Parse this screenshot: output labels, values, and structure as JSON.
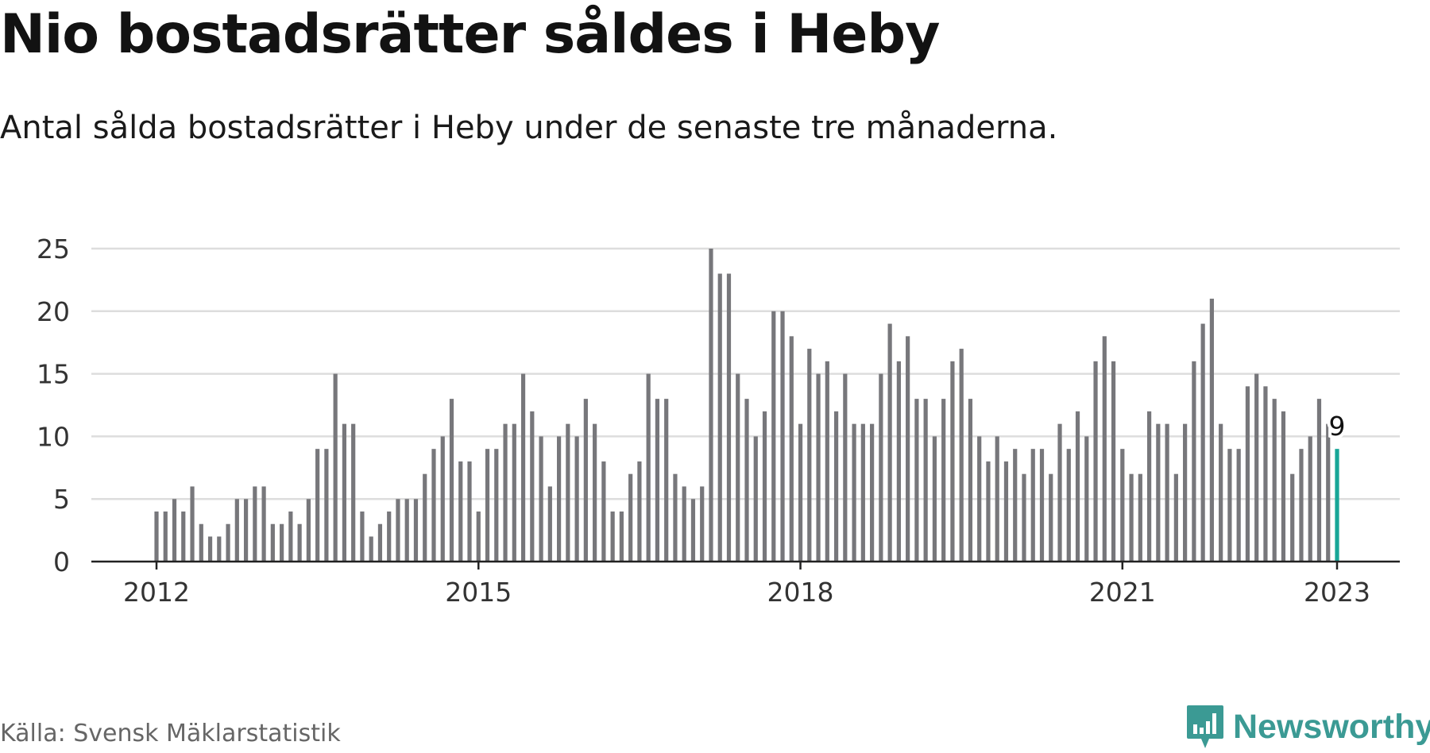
{
  "title": "Nio bostadsrätter såldes i Heby",
  "subtitle": "Antal sålda bostadsrätter i Heby under de senaste tre månaderna.",
  "source": "Källa: Svensk Mäklarstatistik",
  "brand": "Newsworthy",
  "colors": {
    "bar": "#77777b",
    "highlight": "#17a697",
    "grid": "#dddddd",
    "axis": "#222222",
    "brand": "#3b9a94"
  },
  "chart_data": {
    "type": "bar",
    "title": "Nio bostadsrätter såldes i Heby",
    "subtitle": "Antal sålda bostadsrätter i Heby under de senaste tre månaderna.",
    "xlabel": "",
    "ylabel": "",
    "ylim": [
      0,
      25
    ],
    "yticks": [
      0,
      5,
      10,
      15,
      20,
      25
    ],
    "x_start": "2012-01",
    "x_end": "2023-01",
    "xticks": [
      "2012",
      "2015",
      "2018",
      "2021",
      "2023"
    ],
    "grid": true,
    "highlight_label": "9",
    "series": [
      {
        "values": [
          4,
          4,
          5,
          4,
          6,
          3,
          2,
          2,
          3,
          5,
          5,
          6,
          6,
          3,
          3,
          4,
          3,
          5,
          9,
          9,
          15,
          11,
          11,
          4,
          2,
          3,
          4,
          5,
          5,
          5,
          7,
          9,
          10,
          13,
          8,
          8,
          4,
          9,
          9,
          11,
          11,
          15,
          12,
          10,
          6,
          10,
          11,
          10,
          13,
          11,
          8,
          4,
          4,
          7,
          8,
          15,
          13,
          13,
          7,
          6,
          5,
          6,
          25,
          23,
          23,
          15,
          13,
          10,
          12,
          20,
          20,
          18,
          11,
          17,
          15,
          16,
          12,
          15,
          11,
          11,
          11,
          15,
          19,
          16,
          18,
          13,
          13,
          10,
          13,
          16,
          17,
          13,
          10,
          8,
          10,
          8,
          9,
          7,
          9,
          9,
          7,
          11,
          9,
          12,
          10,
          16,
          18,
          16,
          9,
          7,
          7,
          12,
          11,
          11,
          7,
          11,
          16,
          19,
          21,
          11,
          9,
          9,
          14,
          15,
          14,
          13,
          12,
          7,
          9,
          10,
          13,
          11,
          9
        ]
      }
    ]
  }
}
